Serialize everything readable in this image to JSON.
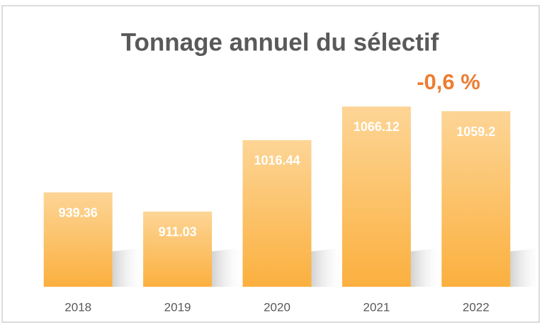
{
  "chart_data": {
    "type": "bar",
    "title": "Tonnage annuel du sélectif",
    "annotation": "-0,6 %",
    "categories": [
      "2018",
      "2019",
      "2020",
      "2021",
      "2022"
    ],
    "values": [
      939.36,
      911.03,
      1016.44,
      1066.12,
      1059.2
    ],
    "color": "#fbb347",
    "annotation_color": "#ed7d31",
    "ylim": [
      800,
      1100
    ]
  }
}
